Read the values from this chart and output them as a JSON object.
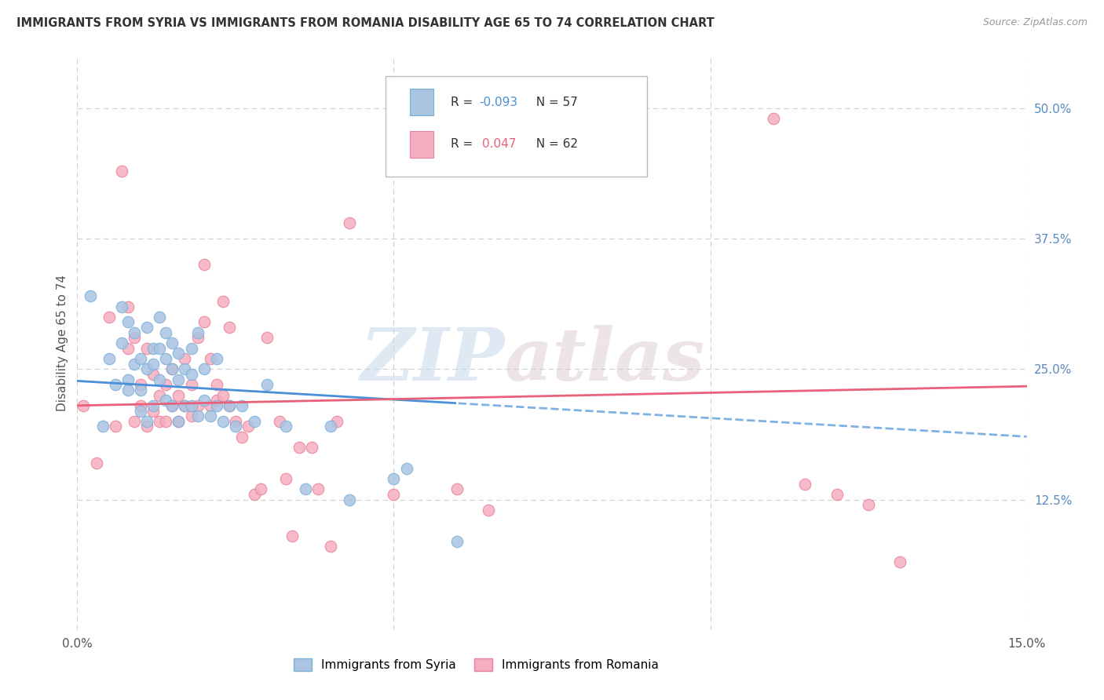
{
  "title": "IMMIGRANTS FROM SYRIA VS IMMIGRANTS FROM ROMANIA DISABILITY AGE 65 TO 74 CORRELATION CHART",
  "source": "Source: ZipAtlas.com",
  "ylabel": "Disability Age 65 to 74",
  "xlim": [
    0.0,
    0.15
  ],
  "ylim": [
    0.0,
    0.55
  ],
  "yticks_right": [
    0.125,
    0.25,
    0.375,
    0.5
  ],
  "ytick_labels_right": [
    "12.5%",
    "25.0%",
    "37.5%",
    "50.0%"
  ],
  "syria_color": "#aac4e2",
  "romania_color": "#f5aec0",
  "syria_edge": "#7ab0d8",
  "romania_edge": "#e88098",
  "trend_syria_color": "#4a90d9",
  "trend_romania_color": "#e8607a",
  "R_syria": -0.093,
  "N_syria": 57,
  "R_romania": 0.047,
  "N_romania": 62,
  "legend_label_syria": "Immigrants from Syria",
  "legend_label_romania": "Immigrants from Romania",
  "syria_x": [
    0.002,
    0.004,
    0.005,
    0.006,
    0.007,
    0.007,
    0.008,
    0.008,
    0.008,
    0.009,
    0.009,
    0.01,
    0.01,
    0.01,
    0.011,
    0.011,
    0.011,
    0.012,
    0.012,
    0.012,
    0.013,
    0.013,
    0.013,
    0.014,
    0.014,
    0.014,
    0.015,
    0.015,
    0.015,
    0.016,
    0.016,
    0.016,
    0.017,
    0.017,
    0.018,
    0.018,
    0.018,
    0.019,
    0.019,
    0.02,
    0.02,
    0.021,
    0.022,
    0.022,
    0.023,
    0.024,
    0.025,
    0.026,
    0.028,
    0.03,
    0.033,
    0.036,
    0.04,
    0.043,
    0.05,
    0.052,
    0.06
  ],
  "syria_y": [
    0.32,
    0.195,
    0.26,
    0.235,
    0.275,
    0.31,
    0.24,
    0.295,
    0.23,
    0.255,
    0.285,
    0.21,
    0.26,
    0.23,
    0.2,
    0.25,
    0.29,
    0.215,
    0.255,
    0.27,
    0.24,
    0.27,
    0.3,
    0.22,
    0.26,
    0.285,
    0.215,
    0.25,
    0.275,
    0.2,
    0.24,
    0.265,
    0.215,
    0.25,
    0.215,
    0.245,
    0.27,
    0.205,
    0.285,
    0.22,
    0.25,
    0.205,
    0.215,
    0.26,
    0.2,
    0.215,
    0.195,
    0.215,
    0.2,
    0.235,
    0.195,
    0.135,
    0.195,
    0.125,
    0.145,
    0.155,
    0.085
  ],
  "romania_x": [
    0.001,
    0.003,
    0.005,
    0.006,
    0.007,
    0.008,
    0.008,
    0.009,
    0.009,
    0.01,
    0.01,
    0.011,
    0.011,
    0.012,
    0.012,
    0.013,
    0.013,
    0.014,
    0.014,
    0.015,
    0.015,
    0.016,
    0.016,
    0.017,
    0.017,
    0.018,
    0.018,
    0.019,
    0.019,
    0.02,
    0.02,
    0.021,
    0.021,
    0.022,
    0.022,
    0.023,
    0.023,
    0.024,
    0.024,
    0.025,
    0.026,
    0.027,
    0.028,
    0.029,
    0.03,
    0.032,
    0.033,
    0.034,
    0.035,
    0.037,
    0.038,
    0.04,
    0.041,
    0.043,
    0.05,
    0.06,
    0.065,
    0.11,
    0.115,
    0.12,
    0.125,
    0.13
  ],
  "romania_y": [
    0.215,
    0.16,
    0.3,
    0.195,
    0.44,
    0.27,
    0.31,
    0.2,
    0.28,
    0.235,
    0.215,
    0.195,
    0.27,
    0.21,
    0.245,
    0.2,
    0.225,
    0.2,
    0.235,
    0.215,
    0.25,
    0.2,
    0.225,
    0.215,
    0.26,
    0.205,
    0.235,
    0.215,
    0.28,
    0.35,
    0.295,
    0.215,
    0.26,
    0.22,
    0.235,
    0.225,
    0.315,
    0.29,
    0.215,
    0.2,
    0.185,
    0.195,
    0.13,
    0.135,
    0.28,
    0.2,
    0.145,
    0.09,
    0.175,
    0.175,
    0.135,
    0.08,
    0.2,
    0.39,
    0.13,
    0.135,
    0.115,
    0.49,
    0.14,
    0.13,
    0.12,
    0.065
  ],
  "watermark_zip": "ZIP",
  "watermark_atlas": "atlas",
  "background_color": "#ffffff",
  "grid_color": "#d0d0d0"
}
